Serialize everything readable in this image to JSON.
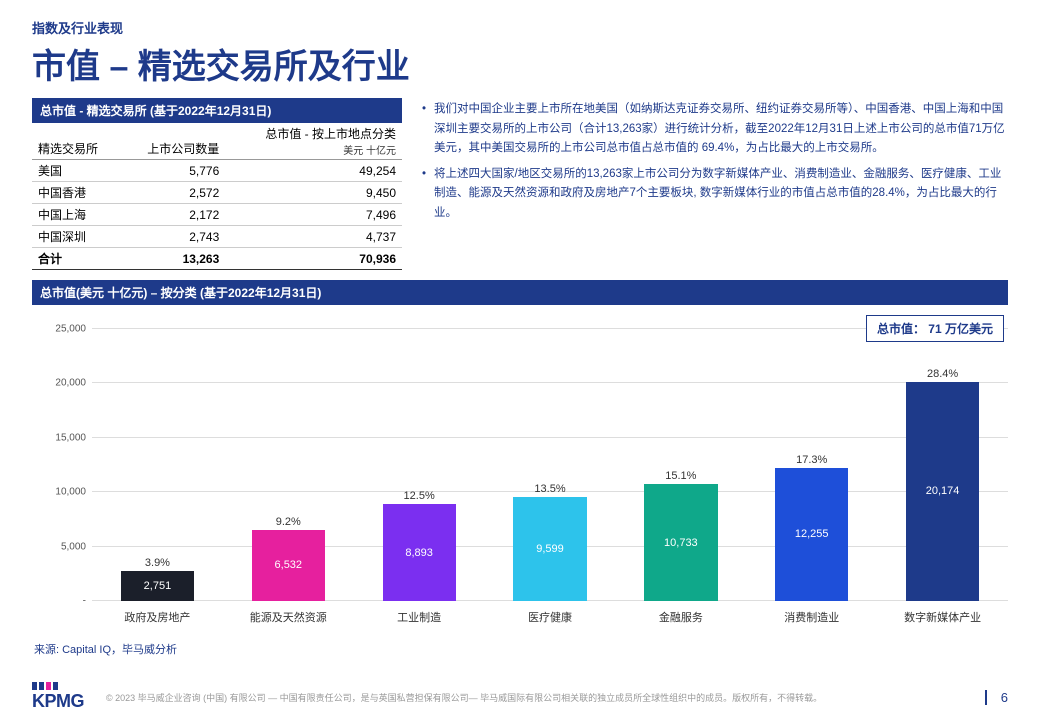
{
  "header": {
    "pretitle": "指数及行业表现",
    "title": "市值 – 精选交易所及行业"
  },
  "exchange_table": {
    "header_bar": "总市值 - 精选交易所 (基于2022年12月31日)",
    "columns": [
      "精选交易所",
      "上市公司数量",
      "总市值 - 按上市地点分类"
    ],
    "col3_sub": "美元 十亿元",
    "rows": [
      {
        "name": "美国",
        "count": "5,776",
        "cap": "49,254"
      },
      {
        "name": "中国香港",
        "count": "2,572",
        "cap": "9,450"
      },
      {
        "name": "中国上海",
        "count": "2,172",
        "cap": "7,496"
      },
      {
        "name": "中国深圳",
        "count": "2,743",
        "cap": "4,737"
      }
    ],
    "total": {
      "name": "合计",
      "count": "13,263",
      "cap": "70,936"
    }
  },
  "bullets": [
    "我们对中国企业主要上市所在地美国（如纳斯达克证券交易所、纽约证券交易所等）、中国香港、中国上海和中国深圳主要交易所的上市公司（合计13,263家）进行统计分析，截至2022年12月31日上述上市公司的总市值71万亿美元，其中美国交易所的上市公司总市值占总市值的 69.4%，为占比最大的上市交易所。",
    "将上述四大国家/地区交易所的13,263家上市公司分为数字新媒体产业、消费制造业、金融服务、医疗健康、工业制造、能源及天然资源和政府及房地产7个主要板块, 数字新媒体行业的市值占总市值的28.4%，为占比最大的行业。"
  ],
  "chart": {
    "header_bar": "总市值(美元 十亿元) – 按分类 (基于2022年12月31日)",
    "total_badge": "总市值： 71 万亿美元",
    "ylim": [
      0,
      25000
    ],
    "yticks": [
      0,
      5000,
      10000,
      15000,
      20000,
      25000
    ],
    "ytick_labels": [
      "-",
      "5,000",
      "10,000",
      "15,000",
      "20,000",
      "25,000"
    ],
    "categories": [
      "政府及房地产",
      "能源及天然资源",
      "工业制造",
      "医疗健康",
      "金融服务",
      "消费制造业",
      "数字新媒体产业"
    ],
    "values": [
      2751,
      6532,
      8893,
      9599,
      10733,
      12255,
      20174
    ],
    "value_labels": [
      "2,751",
      "6,532",
      "8,893",
      "9,599",
      "10,733",
      "12,255",
      "20,174"
    ],
    "pct_labels": [
      "3.9%",
      "9.2%",
      "12.5%",
      "13.5%",
      "15.1%",
      "17.3%",
      "28.4%"
    ],
    "bar_colors": [
      "#1b1f2a",
      "#e6209e",
      "#7b2ff0",
      "#2dc3eb",
      "#0fa88a",
      "#1e4fd9",
      "#1e3a8a"
    ]
  },
  "source": "来源: Capital IQ，毕马威分析",
  "footer": {
    "logo_text": "KPMG",
    "logo_bar_colors": [
      "#1e3a8a",
      "#1e3a8a",
      "#e6209e",
      "#1e3a8a"
    ],
    "copyright": "© 2023 毕马威企业咨询 (中国) 有限公司 — 中国有限责任公司，是与英国私营担保有限公司— 毕马威国际有限公司相关联的独立成员所全球性组织中的成员。版权所有，不得转载。",
    "page_number": "6"
  }
}
